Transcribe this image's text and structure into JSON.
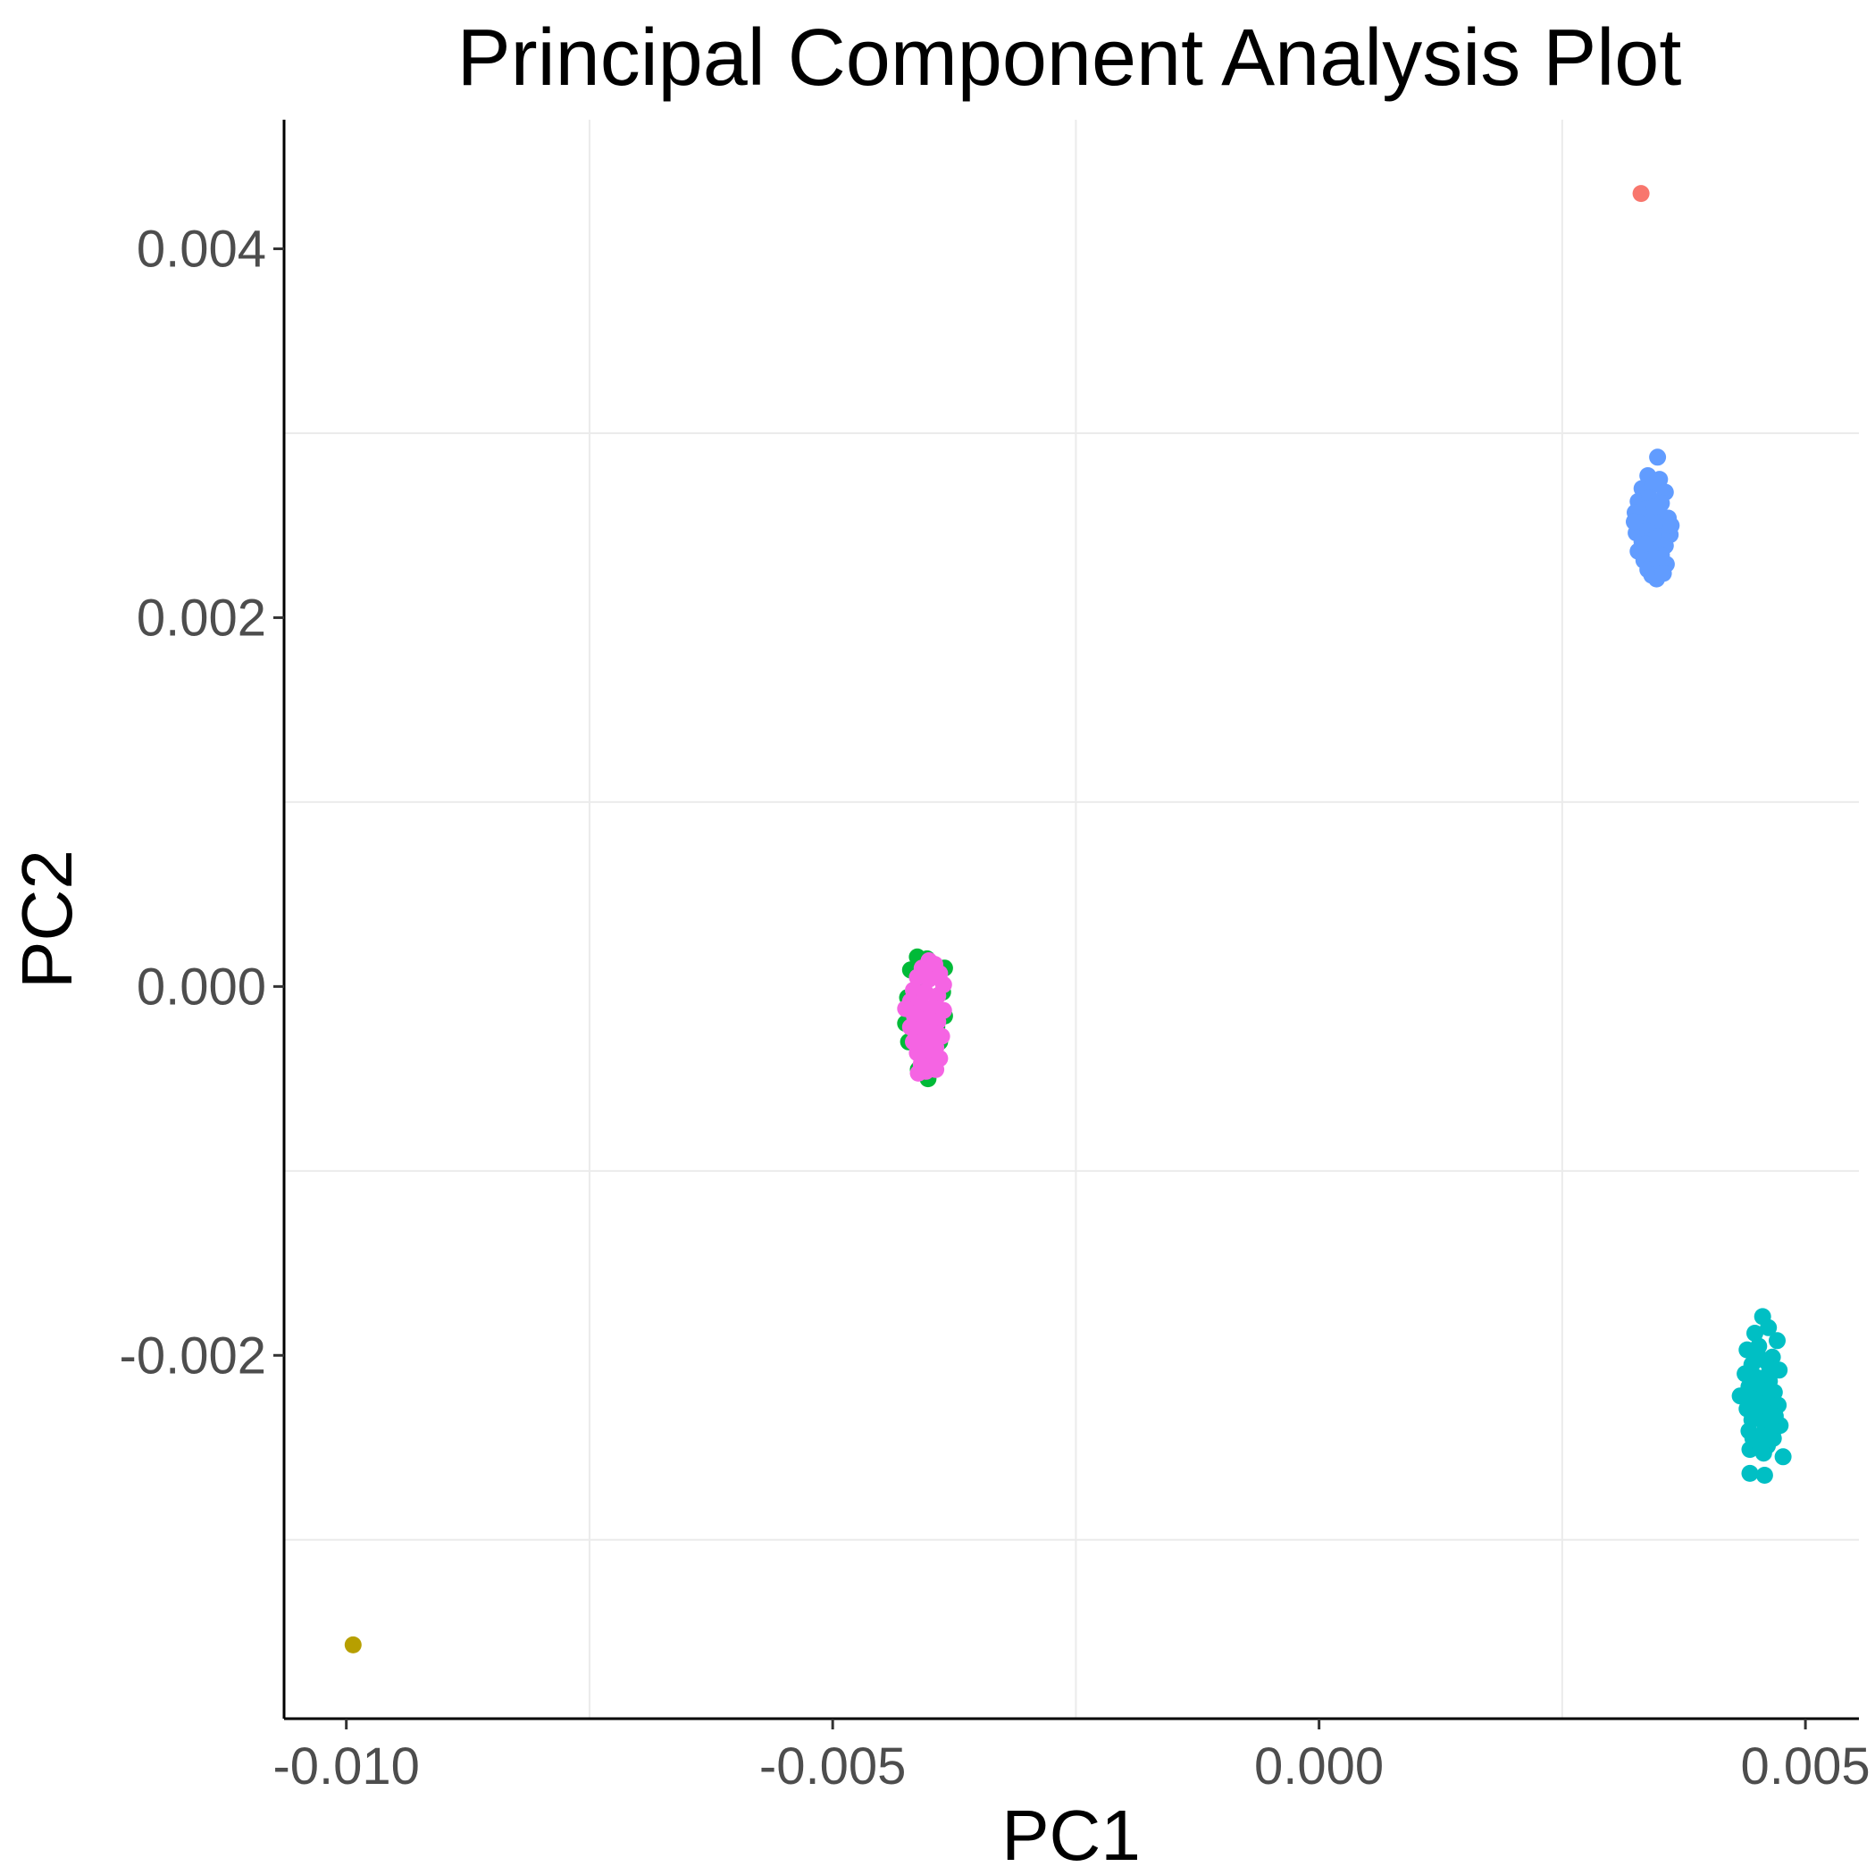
{
  "chart_data": {
    "type": "scatter",
    "title": "Principal Component Analysis Plot",
    "xlabel": "PC1",
    "ylabel": "PC2",
    "xlim": [
      -0.01064,
      0.00555
    ],
    "ylim": [
      -0.00397,
      0.0047
    ],
    "x_ticks": [
      -0.01,
      -0.005,
      0.0,
      0.005
    ],
    "x_tick_labels": [
      "-0.010",
      "-0.005",
      "0.000",
      "0.005"
    ],
    "y_ticks": [
      -0.002,
      0.0,
      0.002,
      0.004
    ],
    "y_tick_labels": [
      "-0.002",
      "0.000",
      "0.002",
      "0.004"
    ],
    "x_minor_grid": [
      -0.0075,
      -0.0025,
      0.0025
    ],
    "y_minor_grid": [
      -0.003,
      -0.001,
      0.001,
      0.003
    ],
    "grid": true,
    "legend": "none",
    "series": [
      {
        "color": "#F8766D",
        "points": [
          [
            0.00331,
            0.0043
          ]
        ]
      },
      {
        "color": "#B79F00",
        "points": [
          [
            -0.00993,
            -0.00357
          ]
        ]
      },
      {
        "color": "#00BA38",
        "points": [
          [
            -0.00413,
            0.00016
          ],
          [
            -0.00403,
            0.00015
          ],
          [
            -0.0042,
            9e-05
          ],
          [
            -0.00385,
            0.0001
          ],
          [
            -0.00387,
            -3e-05
          ],
          [
            -0.00423,
            -6e-05
          ],
          [
            -0.00425,
            -0.0002
          ],
          [
            -0.00385,
            -0.00016
          ],
          [
            -0.0039,
            -0.0003
          ],
          [
            -0.00422,
            -0.0003
          ],
          [
            -0.00412,
            -0.00045
          ],
          [
            -0.00402,
            -0.0005
          ],
          [
            -0.00398,
            -0.00038
          ],
          [
            -0.00393,
            -0.00022
          ],
          [
            -0.00418,
            -0.00012
          ],
          [
            -0.0041,
            5e-05
          ]
        ]
      },
      {
        "color": "#00BFC4",
        "points": [
          [
            0.00456,
            -0.00179
          ],
          [
            0.00462,
            -0.00185
          ],
          [
            0.00448,
            -0.00188
          ],
          [
            0.00471,
            -0.00192
          ],
          [
            0.0044,
            -0.00197
          ],
          [
            0.00452,
            -0.00195
          ],
          [
            0.00466,
            -0.00201
          ],
          [
            0.00445,
            -0.00205
          ],
          [
            0.00459,
            -0.00203
          ],
          [
            0.00473,
            -0.00208
          ],
          [
            0.00438,
            -0.0021
          ],
          [
            0.0045,
            -0.00212
          ],
          [
            0.00463,
            -0.00214
          ],
          [
            0.00442,
            -0.00217
          ],
          [
            0.00455,
            -0.00219
          ],
          [
            0.00468,
            -0.0022
          ],
          [
            0.00433,
            -0.00222
          ],
          [
            0.00447,
            -0.00224
          ],
          [
            0.0046,
            -0.00226
          ],
          [
            0.00472,
            -0.00227
          ],
          [
            0.0044,
            -0.00229
          ],
          [
            0.00452,
            -0.00231
          ],
          [
            0.00465,
            -0.00232
          ],
          [
            0.00445,
            -0.00235
          ],
          [
            0.00458,
            -0.00237
          ],
          [
            0.0047,
            -0.00239
          ],
          [
            0.00442,
            -0.00241
          ],
          [
            0.00455,
            -0.00243
          ],
          [
            0.00467,
            -0.00245
          ],
          [
            0.00449,
            -0.00247
          ],
          [
            0.00461,
            -0.00249
          ],
          [
            0.00474,
            -0.00238
          ],
          [
            0.00443,
            -0.00251
          ],
          [
            0.00457,
            -0.00253
          ],
          [
            0.00469,
            -0.00233
          ],
          [
            0.00451,
            -0.002
          ],
          [
            0.00463,
            -0.00209
          ],
          [
            0.00446,
            -0.00245
          ],
          [
            0.00454,
            -0.0025
          ],
          [
            0.00443,
            -0.00264
          ],
          [
            0.00458,
            -0.00265
          ],
          [
            0.00477,
            -0.00255
          ]
        ]
      },
      {
        "color": "#619CFF",
        "points": [
          [
            0.00348,
            0.00287
          ],
          [
            0.00338,
            0.00277
          ],
          [
            0.0035,
            0.00275
          ],
          [
            0.00332,
            0.0027
          ],
          [
            0.00344,
            0.00272
          ],
          [
            0.00356,
            0.00268
          ],
          [
            0.00328,
            0.00263
          ],
          [
            0.0034,
            0.00265
          ],
          [
            0.00352,
            0.00262
          ],
          [
            0.00325,
            0.00257
          ],
          [
            0.00336,
            0.00259
          ],
          [
            0.00348,
            0.00256
          ],
          [
            0.00359,
            0.00254
          ],
          [
            0.0033,
            0.00251
          ],
          [
            0.00342,
            0.00252
          ],
          [
            0.00354,
            0.00249
          ],
          [
            0.00326,
            0.00246
          ],
          [
            0.00338,
            0.00247
          ],
          [
            0.0035,
            0.00244
          ],
          [
            0.00361,
            0.00245
          ],
          [
            0.00332,
            0.00241
          ],
          [
            0.00344,
            0.00242
          ],
          [
            0.00356,
            0.00239
          ],
          [
            0.00328,
            0.00236
          ],
          [
            0.0034,
            0.00237
          ],
          [
            0.00352,
            0.00234
          ],
          [
            0.00334,
            0.00231
          ],
          [
            0.00346,
            0.00232
          ],
          [
            0.00357,
            0.00229
          ],
          [
            0.00338,
            0.00226
          ],
          [
            0.0035,
            0.00227
          ],
          [
            0.00342,
            0.00223
          ],
          [
            0.00347,
            0.00221
          ],
          [
            0.00354,
            0.00224
          ],
          [
            0.00362,
            0.0025
          ],
          [
            0.00324,
            0.00252
          ],
          [
            0.00345,
            0.0026
          ],
          [
            0.00335,
            0.0024
          ]
        ]
      },
      {
        "color": "#F564E3",
        "points": [
          [
            -0.00401,
            0.00014
          ],
          [
            -0.00395,
            0.00012
          ],
          [
            -0.00408,
            0.0001
          ],
          [
            -0.0039,
            7e-05
          ],
          [
            -0.00413,
            5e-05
          ],
          [
            -0.00401,
            4e-05
          ],
          [
            -0.00386,
            1e-05
          ],
          [
            -0.00417,
            -2e-05
          ],
          [
            -0.00405,
            -3e-05
          ],
          [
            -0.00392,
            -5e-05
          ],
          [
            -0.0042,
            -8e-05
          ],
          [
            -0.00409,
            -0.0001
          ],
          [
            -0.00397,
            -0.00011
          ],
          [
            -0.00386,
            -0.00013
          ],
          [
            -0.00416,
            -0.00016
          ],
          [
            -0.00404,
            -0.00018
          ],
          [
            -0.00392,
            -0.00019
          ],
          [
            -0.0042,
            -0.00022
          ],
          [
            -0.00409,
            -0.00024
          ],
          [
            -0.00398,
            -0.00025
          ],
          [
            -0.00388,
            -0.00027
          ],
          [
            -0.00417,
            -0.0003
          ],
          [
            -0.00405,
            -0.00031
          ],
          [
            -0.00394,
            -0.00033
          ],
          [
            -0.00413,
            -0.00036
          ],
          [
            -0.00401,
            -0.00037
          ],
          [
            -0.0039,
            -0.00039
          ],
          [
            -0.00409,
            -0.00042
          ],
          [
            -0.00398,
            -0.00043
          ],
          [
            -0.00404,
            -0.00046
          ],
          [
            -0.00394,
            -0.00045
          ],
          [
            -0.00412,
            -0.00047
          ],
          [
            -0.00425,
            -0.00012
          ]
        ]
      }
    ]
  }
}
